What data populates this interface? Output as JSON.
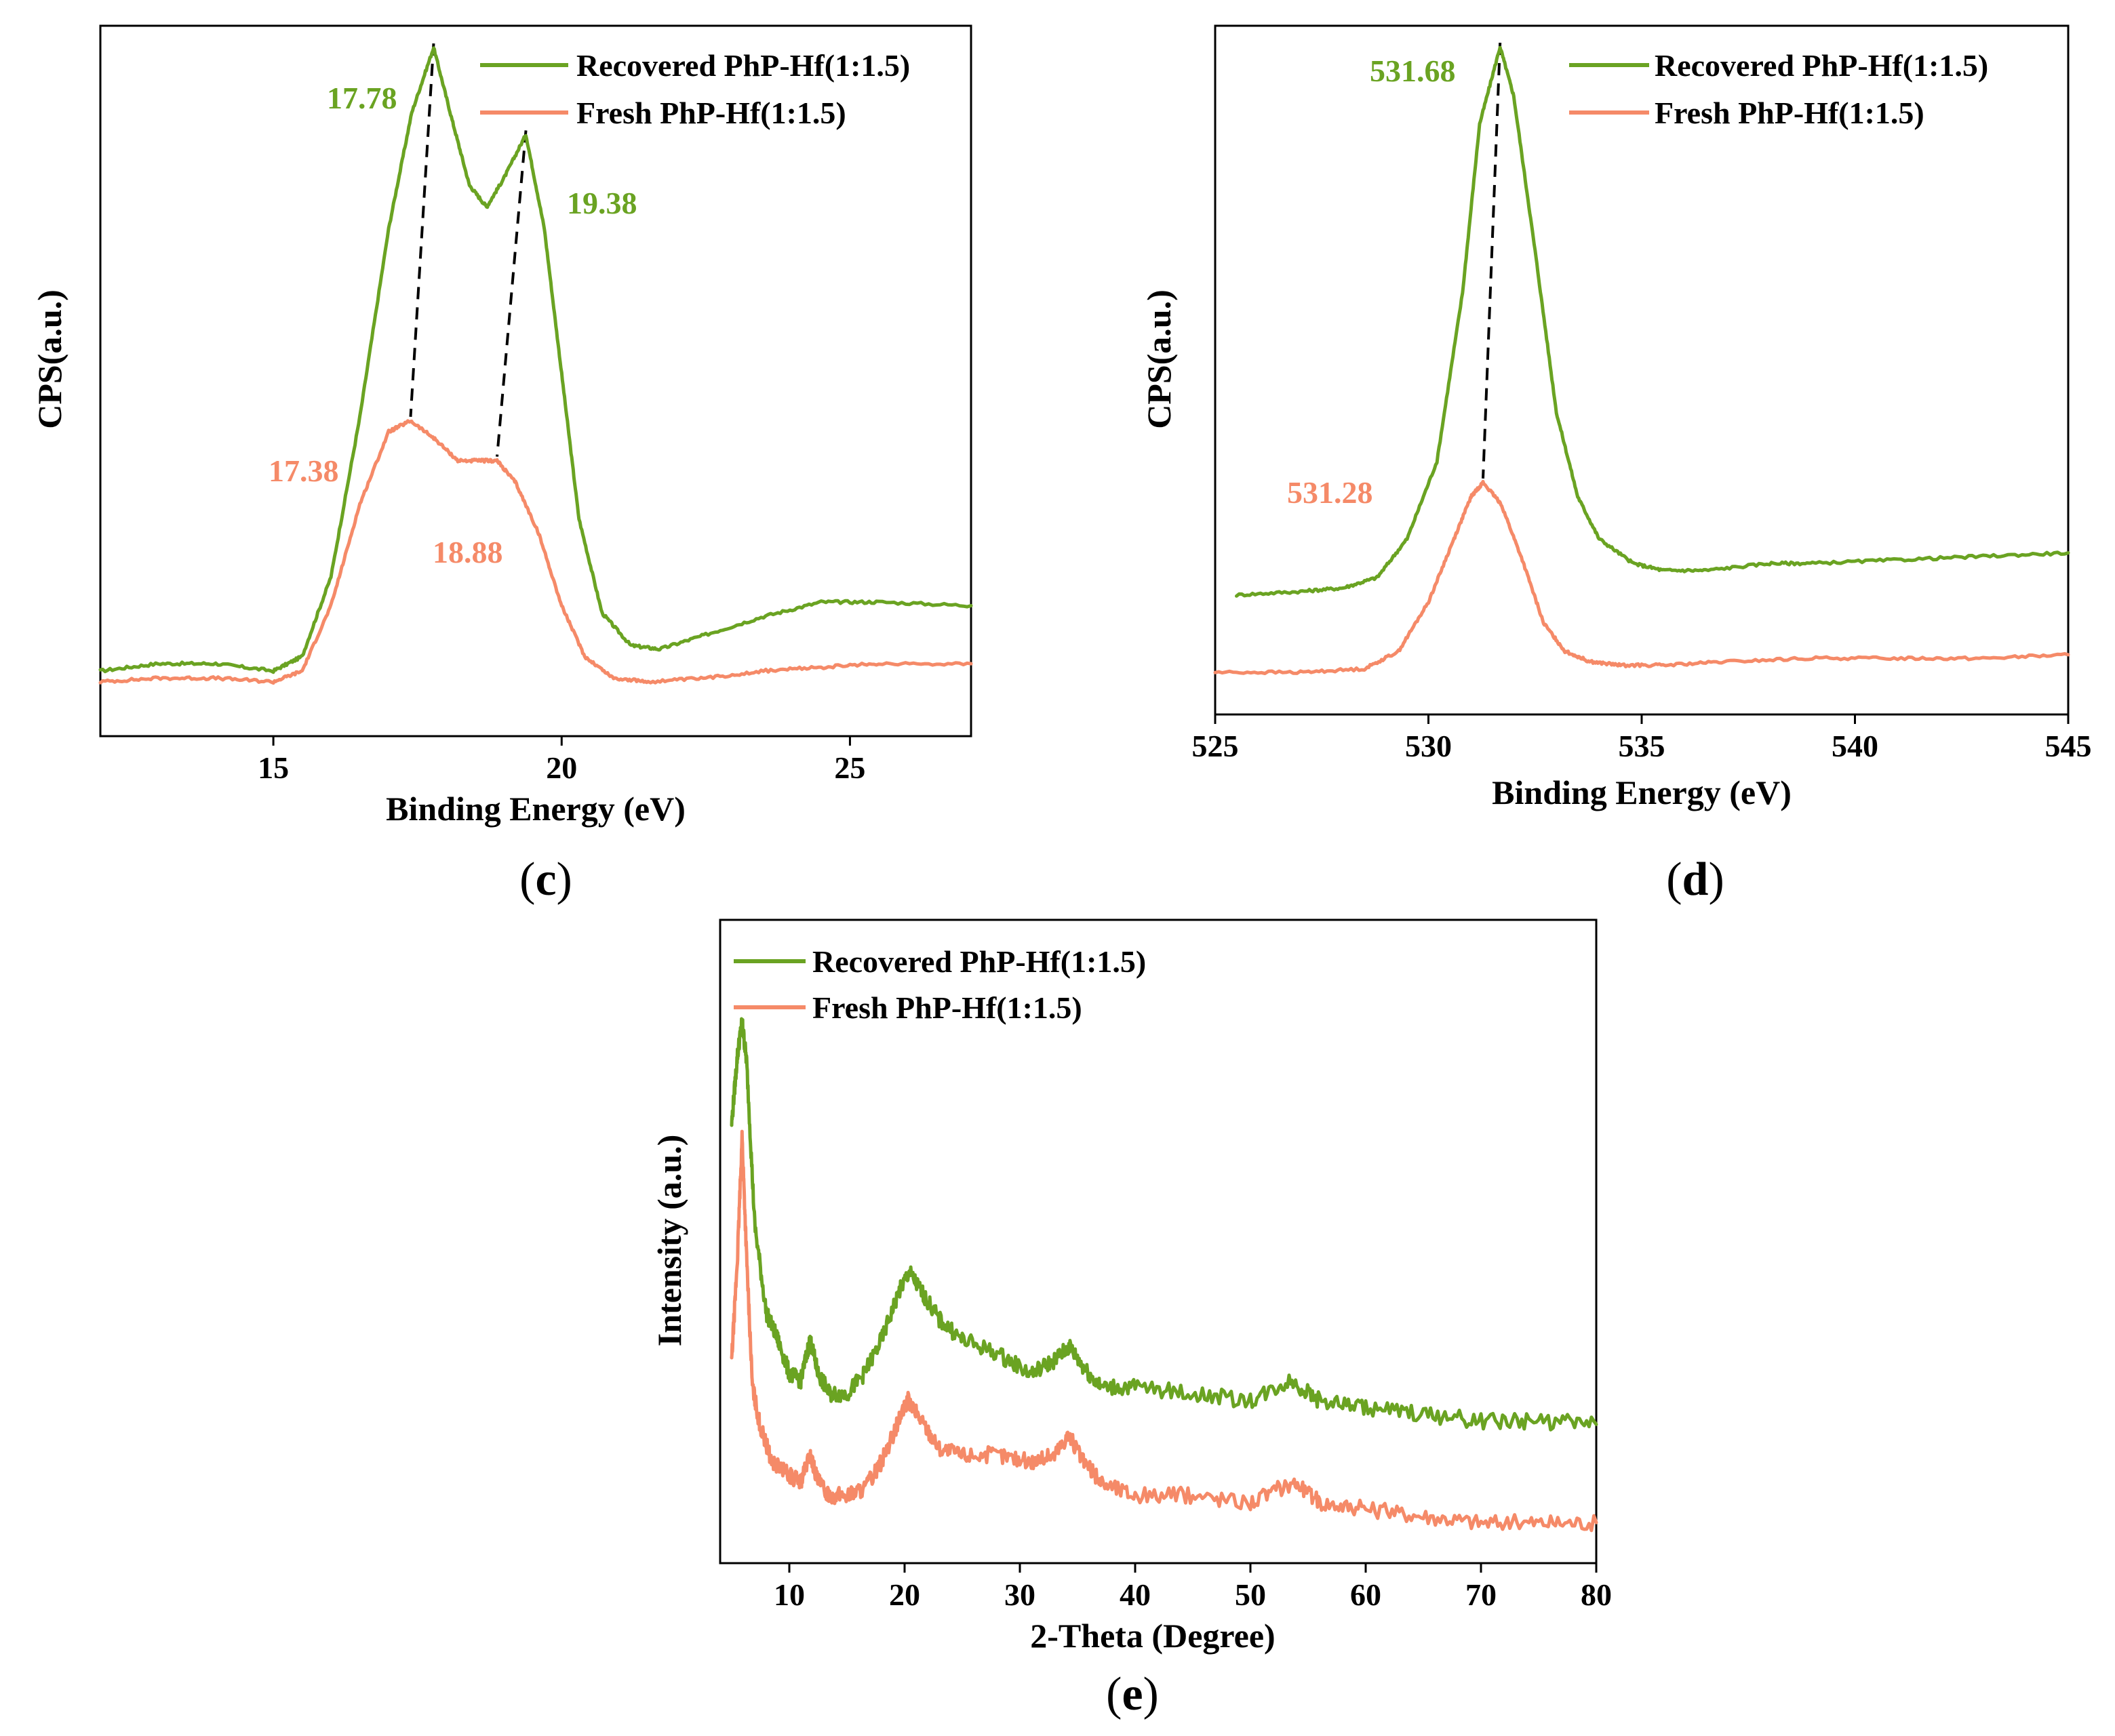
{
  "colors": {
    "recovered": "#6aa322",
    "fresh": "#f58a68"
  },
  "chart_data": [
    {
      "type": "line",
      "panel_label": "c",
      "xlabel": "Binding Energy (eV)",
      "ylabel": "CPS(a.u.)",
      "xlim": [
        12,
        27.1
      ],
      "ylim": [
        0,
        1
      ],
      "xticks": [
        15,
        20,
        25
      ],
      "legend_position": "top-right",
      "series": [
        {
          "name": "Recovered PhP-Hf(1:1.5)",
          "color_key": "recovered",
          "x": [
            12,
            13,
            14,
            15,
            15.5,
            16,
            16.5,
            17,
            17.4,
            17.78,
            18.1,
            18.4,
            18.7,
            19.0,
            19.38,
            19.7,
            20.0,
            20.3,
            20.7,
            21.2,
            21.7,
            22.5,
            23.5,
            24.5,
            25.5,
            27.1
          ],
          "y": [
            0.11,
            0.12,
            0.12,
            0.11,
            0.13,
            0.24,
            0.46,
            0.72,
            0.88,
            0.97,
            0.87,
            0.78,
            0.75,
            0.79,
            0.85,
            0.72,
            0.52,
            0.32,
            0.19,
            0.145,
            0.14,
            0.16,
            0.185,
            0.205,
            0.205,
            0.2
          ]
        },
        {
          "name": "Fresh PhP-Hf(1:1.5)",
          "color_key": "fresh",
          "x": [
            12,
            13,
            14,
            15,
            15.5,
            16,
            16.5,
            17,
            17.38,
            17.8,
            18.2,
            18.6,
            18.88,
            19.2,
            19.6,
            20.0,
            20.4,
            20.9,
            21.5,
            22.5,
            23.5,
            24.5,
            25.5,
            27.1
          ],
          "y": [
            0.095,
            0.1,
            0.1,
            0.095,
            0.11,
            0.2,
            0.34,
            0.44,
            0.455,
            0.43,
            0.4,
            0.4,
            0.4,
            0.37,
            0.3,
            0.2,
            0.13,
            0.1,
            0.095,
            0.1,
            0.11,
            0.115,
            0.12,
            0.12
          ]
        }
      ],
      "annotations": [
        {
          "text": "17.78",
          "series": "recovered"
        },
        {
          "text": "19.38",
          "series": "recovered"
        },
        {
          "text": "17.38",
          "series": "fresh"
        },
        {
          "text": "18.88",
          "series": "fresh"
        }
      ],
      "dashed_connectors": [
        {
          "from": [
            17.78,
            0.97
          ],
          "to": [
            17.38,
            0.455
          ]
        },
        {
          "from": [
            19.38,
            0.85
          ],
          "to": [
            18.88,
            0.4
          ]
        }
      ]
    },
    {
      "type": "line",
      "panel_label": "d",
      "xlabel": "Binding Energy (eV)",
      "ylabel": "CPS(a.u.)",
      "xlim": [
        525,
        545
      ],
      "ylim": [
        0,
        1
      ],
      "xticks": [
        525,
        530,
        535,
        540,
        545
      ],
      "legend_position": "top-right",
      "series": [
        {
          "name": "Recovered PhP-Hf(1:1.5)",
          "color_key": "recovered",
          "x": [
            525.5,
            527,
            528,
            528.8,
            529.5,
            530.2,
            530.8,
            531.2,
            531.68,
            532.0,
            532.5,
            533.0,
            533.5,
            534.0,
            534.8,
            535.5,
            536.5,
            538,
            539,
            541,
            543,
            545
          ],
          "y": [
            0.19,
            0.195,
            0.2,
            0.215,
            0.27,
            0.38,
            0.62,
            0.86,
            0.97,
            0.9,
            0.68,
            0.45,
            0.33,
            0.27,
            0.235,
            0.225,
            0.225,
            0.235,
            0.235,
            0.24,
            0.245,
            0.25
          ]
        },
        {
          "name": "Fresh PhP-Hf(1:1.5)",
          "color_key": "fresh",
          "x": [
            525,
            527,
            528.5,
            529.3,
            530.0,
            530.6,
            531.0,
            531.28,
            531.7,
            532.2,
            532.7,
            533.2,
            533.8,
            534.5,
            535.5,
            537,
            539,
            541,
            543,
            545
          ],
          "y": [
            0.08,
            0.08,
            0.085,
            0.11,
            0.18,
            0.27,
            0.33,
            0.35,
            0.32,
            0.24,
            0.15,
            0.11,
            0.095,
            0.09,
            0.09,
            0.095,
            0.1,
            0.1,
            0.1,
            0.105
          ]
        }
      ],
      "annotations": [
        {
          "text": "531.68",
          "series": "recovered"
        },
        {
          "text": "531.28",
          "series": "fresh"
        }
      ],
      "dashed_connectors": [
        {
          "from": [
            531.68,
            0.97
          ],
          "to": [
            531.28,
            0.35
          ]
        }
      ]
    },
    {
      "type": "line",
      "panel_label": "e",
      "xlabel": "2-Theta (Degree)",
      "ylabel": "Intensity (a.u.)",
      "xlim": [
        4,
        80
      ],
      "ylim": [
        0,
        1
      ],
      "xticks": [
        10,
        20,
        30,
        40,
        50,
        60,
        70,
        80
      ],
      "legend_position": "top-left",
      "series": [
        {
          "name": "Recovered PhP-Hf(1:1.5)",
          "color_key": "recovered",
          "x": [
            5,
            5.5,
            5.9,
            6.3,
            7,
            8,
            9,
            10,
            11,
            11.8,
            12.5,
            13.5,
            15,
            16.5,
            18,
            19.5,
            20.4,
            21.5,
            23,
            25,
            28,
            31,
            33,
            34.3,
            35.5,
            37,
            40,
            45,
            50,
            53.5,
            56,
            60,
            65,
            70,
            75,
            80
          ],
          "y": [
            0.65,
            0.75,
            0.8,
            0.74,
            0.5,
            0.37,
            0.33,
            0.28,
            0.27,
            0.33,
            0.28,
            0.25,
            0.25,
            0.28,
            0.33,
            0.4,
            0.43,
            0.4,
            0.36,
            0.33,
            0.31,
            0.28,
            0.3,
            0.32,
            0.29,
            0.26,
            0.26,
            0.25,
            0.24,
            0.27,
            0.24,
            0.23,
            0.22,
            0.21,
            0.21,
            0.205
          ]
        },
        {
          "name": "Fresh PhP-Hf(1:1.5)",
          "color_key": "fresh",
          "x": [
            5,
            5.5,
            5.9,
            6.3,
            6.8,
            7.5,
            8.5,
            10,
            11,
            11.8,
            12.5,
            13.5,
            15,
            16.5,
            18,
            19.5,
            20.3,
            21.5,
            23,
            25,
            28,
            31,
            33,
            34.2,
            35.5,
            37,
            40,
            45,
            50,
            53.8,
            56,
            60,
            65,
            70,
            75,
            80
          ],
          "y": [
            0.3,
            0.45,
            0.63,
            0.45,
            0.26,
            0.2,
            0.15,
            0.13,
            0.12,
            0.16,
            0.12,
            0.1,
            0.1,
            0.11,
            0.15,
            0.21,
            0.24,
            0.21,
            0.17,
            0.16,
            0.16,
            0.15,
            0.16,
            0.19,
            0.15,
            0.12,
            0.1,
            0.1,
            0.09,
            0.12,
            0.09,
            0.08,
            0.07,
            0.06,
            0.06,
            0.06
          ]
        }
      ],
      "annotations": [],
      "dashed_connectors": []
    }
  ]
}
